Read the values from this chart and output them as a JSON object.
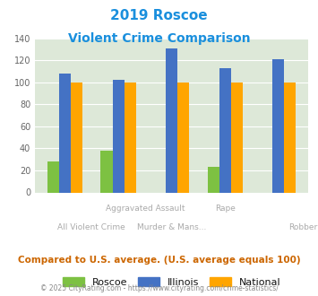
{
  "title_line1": "2019 Roscoe",
  "title_line2": "Violent Crime Comparison",
  "roscoe": [
    28,
    38,
    0,
    23,
    0
  ],
  "illinois": [
    108,
    102,
    131,
    113,
    121
  ],
  "national": [
    100,
    100,
    100,
    100,
    100
  ],
  "bar_colors": {
    "roscoe": "#7dc142",
    "illinois": "#4472c4",
    "national": "#ffa500"
  },
  "ylim": [
    0,
    140
  ],
  "yticks": [
    0,
    20,
    40,
    60,
    80,
    100,
    120,
    140
  ],
  "bg_color": "#dde8d8",
  "title_color": "#1a8fdd",
  "xlabel_top": [
    "",
    "Aggravated Assault",
    "",
    "Rape",
    ""
  ],
  "xlabel_bot": [
    "All Violent Crime",
    "Murder & Mans...",
    "",
    "",
    "Robbery"
  ],
  "footer_note": "Compared to U.S. average. (U.S. average equals 100)",
  "footer_copy": "© 2025 CityRating.com - https://www.cityrating.com/crime-statistics/",
  "legend_labels": [
    "Roscoe",
    "Illinois",
    "National"
  ],
  "footer_note_color": "#cc6600",
  "footer_copy_color": "#888888",
  "xtick_color": "#aaaaaa"
}
